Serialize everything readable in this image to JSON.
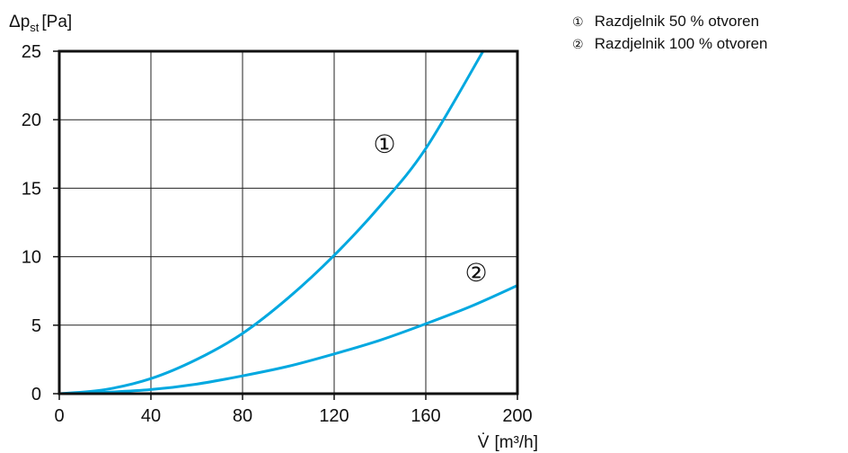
{
  "chart_data": {
    "type": "line",
    "ylabel_symbol": "Δp",
    "ylabel_subscript": "st",
    "ylabel_unit": "[Pa]",
    "xlabel_symbol": "V̇",
    "xlabel_unit": "[m³/h]",
    "xlim": [
      0,
      200
    ],
    "ylim": [
      0,
      25
    ],
    "x_ticks": [
      0,
      40,
      80,
      120,
      160,
      200
    ],
    "y_ticks": [
      0,
      5,
      10,
      15,
      20,
      25
    ],
    "grid": true,
    "legend_position": "top-right, outside plot",
    "series": [
      {
        "marker": "①",
        "name": "Razdjelnik 50 % otvoren",
        "color": "#00a8e0",
        "x": [
          0,
          20,
          40,
          60,
          80,
          100,
          120,
          140,
          160,
          185
        ],
        "y": [
          0,
          0.3,
          1.1,
          2.5,
          4.4,
          7.0,
          10.1,
          13.7,
          17.9,
          25.0
        ],
        "marker_at": [
          142,
          17.6
        ]
      },
      {
        "marker": "②",
        "name": "Razdjelnik 100 % otvoren",
        "color": "#00a8e0",
        "x": [
          0,
          20,
          40,
          60,
          80,
          100,
          120,
          140,
          160,
          180,
          200
        ],
        "y": [
          0,
          0.1,
          0.3,
          0.7,
          1.3,
          2.0,
          2.9,
          3.9,
          5.1,
          6.4,
          7.9
        ],
        "marker_at": [
          182,
          8.2
        ]
      }
    ]
  }
}
